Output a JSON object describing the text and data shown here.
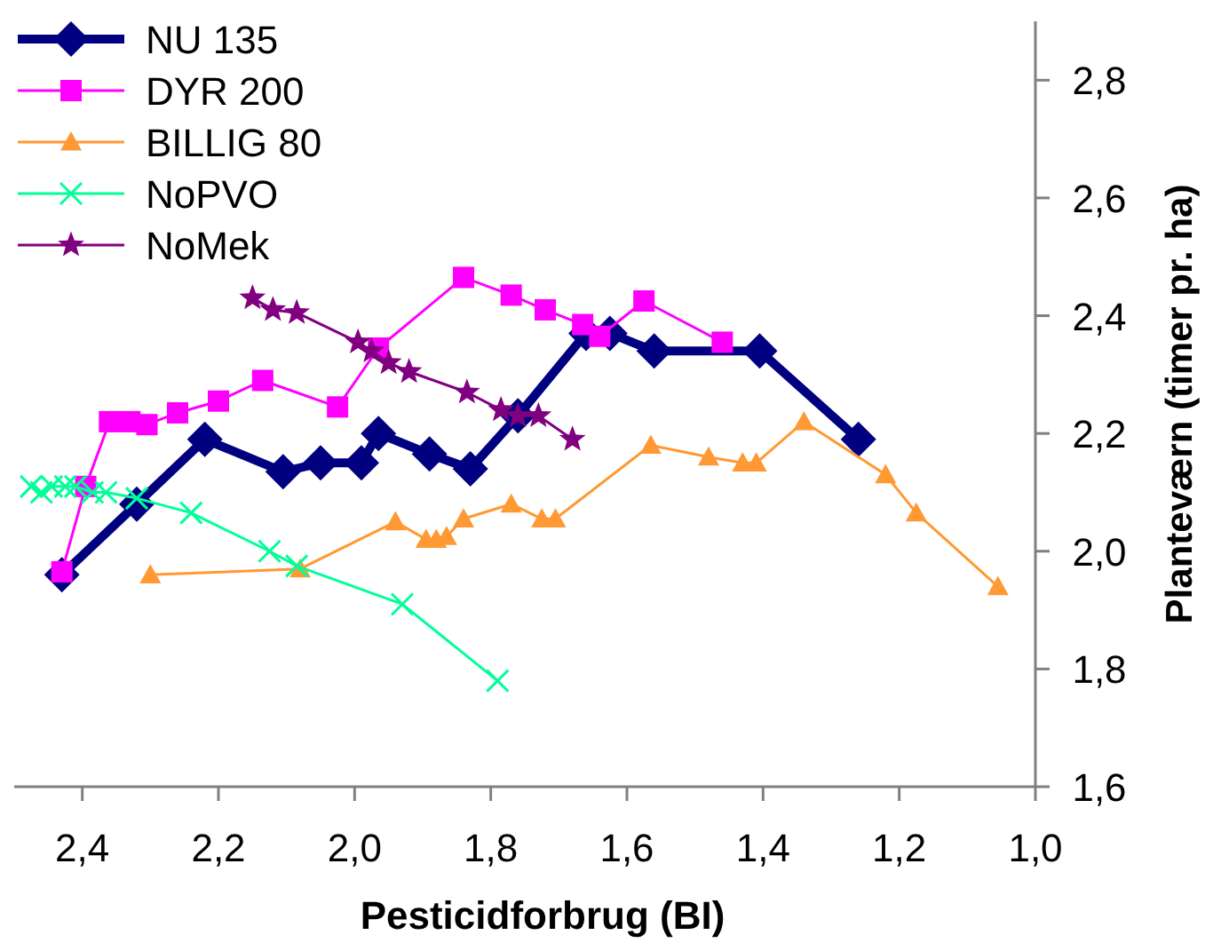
{
  "chart_data": {
    "type": "line",
    "xlabel": "Pesticidforbrug (BI)",
    "ylabel": "Planteværn (timer pr. ha)",
    "xlim": [
      2.5,
      1.0
    ],
    "xticks": [
      {
        "value": 2.4,
        "label": "2,4"
      },
      {
        "value": 2.2,
        "label": "2,2"
      },
      {
        "value": 2.0,
        "label": "2,0"
      },
      {
        "value": 1.8,
        "label": "1,8"
      },
      {
        "value": 1.6,
        "label": "1,6"
      },
      {
        "value": 1.4,
        "label": "1,4"
      },
      {
        "value": 1.2,
        "label": "1,2"
      },
      {
        "value": 1.0,
        "label": "1,0"
      }
    ],
    "ylim": [
      1.6,
      2.9
    ],
    "yticks": [
      {
        "value": 1.6,
        "label": "1,6"
      },
      {
        "value": 1.8,
        "label": "1,8"
      },
      {
        "value": 2.0,
        "label": "2,0"
      },
      {
        "value": 2.2,
        "label": "2,2"
      },
      {
        "value": 2.4,
        "label": "2,4"
      },
      {
        "value": 2.6,
        "label": "2,6"
      },
      {
        "value": 2.8,
        "label": "2,8"
      }
    ],
    "grid": false,
    "legend": "top left",
    "line_style": "solid",
    "series": [
      {
        "name": "NU 135",
        "color": "#000080",
        "marker": "diamond",
        "x": [
          2.43,
          2.32,
          2.22,
          2.105,
          2.05,
          1.99,
          1.965,
          1.89,
          1.83,
          1.76,
          1.66,
          1.625,
          1.56,
          1.405,
          1.26
        ],
        "values": [
          1.96,
          2.08,
          2.19,
          2.135,
          2.15,
          2.15,
          2.2,
          2.165,
          2.14,
          2.23,
          2.37,
          2.37,
          2.34,
          2.34,
          2.19
        ]
      },
      {
        "name": "DYR 200",
        "color": "#ff00ff",
        "marker": "square",
        "x": [
          2.43,
          2.395,
          2.36,
          2.33,
          2.305,
          2.26,
          2.2,
          2.135,
          2.025,
          1.965,
          1.84,
          1.77,
          1.72,
          1.665,
          1.64,
          1.575,
          1.46
        ],
        "values": [
          1.965,
          2.11,
          2.22,
          2.22,
          2.215,
          2.235,
          2.255,
          2.29,
          2.245,
          2.345,
          2.465,
          2.435,
          2.41,
          2.385,
          2.365,
          2.425,
          2.355
        ]
      },
      {
        "name": "BILLIG 80",
        "color": "#ff9933",
        "marker": "triangle",
        "x": [
          2.3,
          2.08,
          1.94,
          1.895,
          1.88,
          1.865,
          1.84,
          1.77,
          1.725,
          1.705,
          1.565,
          1.48,
          1.43,
          1.41,
          1.34,
          1.22,
          1.175,
          1.055
        ],
        "values": [
          1.96,
          1.97,
          2.05,
          2.02,
          2.02,
          2.025,
          2.055,
          2.08,
          2.055,
          2.055,
          2.18,
          2.16,
          2.15,
          2.15,
          2.22,
          2.13,
          2.065,
          1.94
        ]
      },
      {
        "name": "NoPVO",
        "color": "#00ff99",
        "marker": "cross",
        "x": [
          2.475,
          2.46,
          2.445,
          2.425,
          2.41,
          2.385,
          2.365,
          2.32,
          2.24,
          2.125,
          2.085,
          1.93,
          1.79
        ],
        "values": [
          2.11,
          2.1,
          2.11,
          2.11,
          2.11,
          2.1,
          2.1,
          2.09,
          2.065,
          2.0,
          1.975,
          1.91,
          1.78
        ]
      },
      {
        "name": "NoMek",
        "color": "#800080",
        "marker": "star",
        "x": [
          2.15,
          2.12,
          2.085,
          1.995,
          1.975,
          1.95,
          1.92,
          1.835,
          1.785,
          1.76,
          1.73,
          1.68
        ],
        "values": [
          2.43,
          2.41,
          2.405,
          2.355,
          2.34,
          2.32,
          2.305,
          2.27,
          2.24,
          2.23,
          2.23,
          2.19
        ]
      }
    ]
  }
}
